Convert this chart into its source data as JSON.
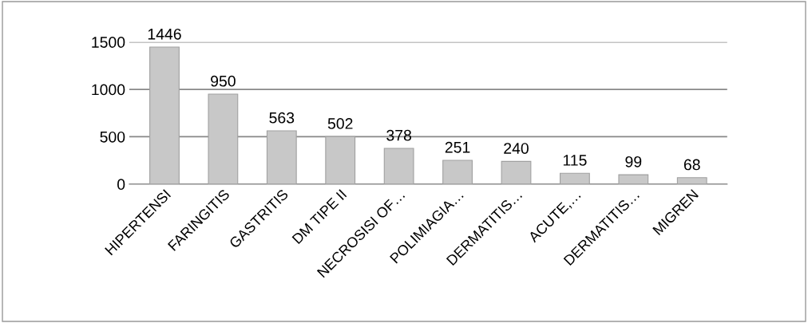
{
  "chart_data": {
    "type": "bar",
    "categories": [
      "HIPERTENSI",
      "FARINGITIS",
      "GASTRITIS",
      "DM TIPE II",
      "NECROSISI OF…",
      "POLIMIAGIA…",
      "DERMATITIS…",
      "ACUTE,…",
      "DERMATITIS…",
      "MIGREN"
    ],
    "values": [
      1446,
      950,
      563,
      502,
      378,
      251,
      240,
      115,
      99,
      68
    ],
    "color": "#c8c8c8",
    "ylim": [
      0,
      1500
    ],
    "yticks": [
      0,
      500,
      1000,
      1500
    ],
    "grid": "y",
    "data_labels": true
  }
}
